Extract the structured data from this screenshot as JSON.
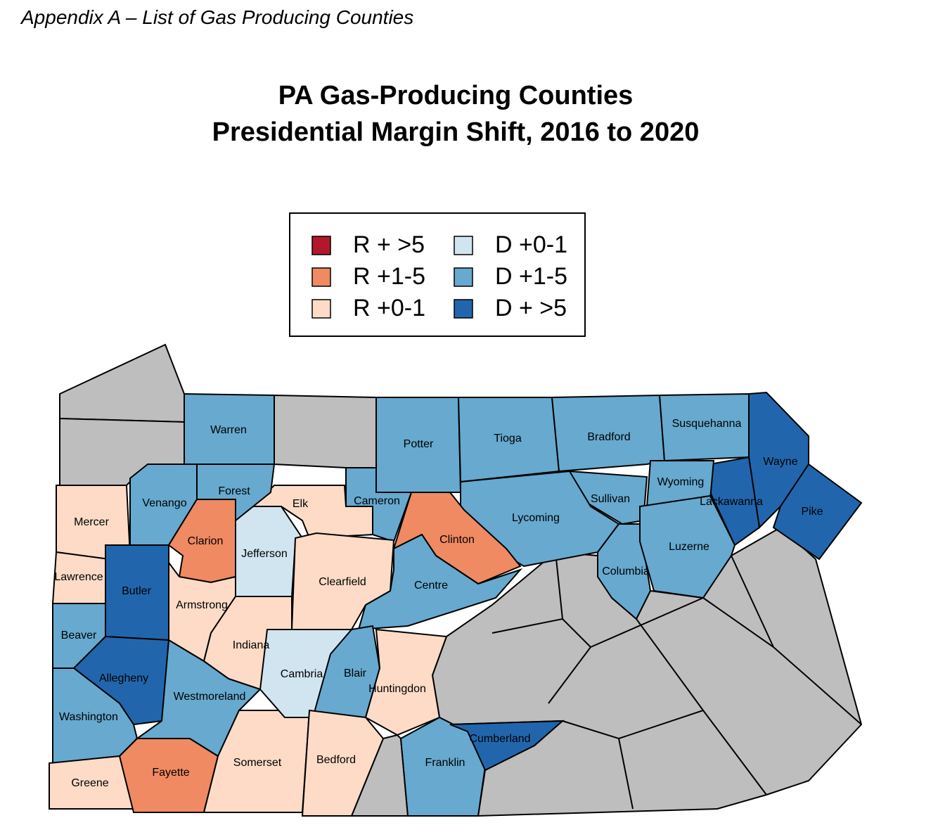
{
  "header": {
    "title": "Appendix A – List of Gas Producing Counties"
  },
  "map": {
    "title": [
      "PA Gas-Producing Counties",
      "Presidential Margin Shift, 2016 to 2020"
    ],
    "legend": [
      {
        "label": "R + >5",
        "color": "#b2182b"
      },
      {
        "label": "R +1-5",
        "color": "#ef8a62"
      },
      {
        "label": "R +0-1",
        "color": "#fddbc7"
      },
      {
        "label": "D +0-1",
        "color": "#d1e5f0"
      },
      {
        "label": "D +1-5",
        "color": "#67a9cf"
      },
      {
        "label": "D + >5",
        "color": "#2166ac"
      }
    ],
    "other_color": "#bebebe",
    "counties": [
      {
        "name": "Warren",
        "shift": "D +1-5"
      },
      {
        "name": "Potter",
        "shift": "D +1-5"
      },
      {
        "name": "Tioga",
        "shift": "D +1-5"
      },
      {
        "name": "Bradford",
        "shift": "D +1-5"
      },
      {
        "name": "Susquehanna",
        "shift": "D +1-5"
      },
      {
        "name": "Wayne",
        "shift": "D + >5"
      },
      {
        "name": "Pike",
        "shift": "D + >5"
      },
      {
        "name": "Lackawanna",
        "shift": "D + >5"
      },
      {
        "name": "Wyoming",
        "shift": "D +1-5"
      },
      {
        "name": "Sullivan",
        "shift": "D +1-5"
      },
      {
        "name": "Lycoming",
        "shift": "D +1-5"
      },
      {
        "name": "Clinton",
        "shift": "R +1-5"
      },
      {
        "name": "Cameron",
        "shift": "D +1-5"
      },
      {
        "name": "Centre",
        "shift": "D +1-5"
      },
      {
        "name": "Columbia",
        "shift": "D +1-5"
      },
      {
        "name": "Luzerne",
        "shift": "D +1-5"
      },
      {
        "name": "Elk",
        "shift": "R +0-1"
      },
      {
        "name": "Jefferson",
        "shift": "D +0-1"
      },
      {
        "name": "Clearfield",
        "shift": "R +0-1"
      },
      {
        "name": "Forest",
        "shift": "D +1-5"
      },
      {
        "name": "Venango",
        "shift": "D +1-5"
      },
      {
        "name": "Clarion",
        "shift": "R +1-5"
      },
      {
        "name": "Mercer",
        "shift": "R +0-1"
      },
      {
        "name": "Lawrence",
        "shift": "R +0-1"
      },
      {
        "name": "Butler",
        "shift": "D + >5"
      },
      {
        "name": "Armstrong",
        "shift": "R +0-1"
      },
      {
        "name": "Indiana",
        "shift": "R +0-1"
      },
      {
        "name": "Beaver",
        "shift": "D +1-5"
      },
      {
        "name": "Allegheny",
        "shift": "D + >5"
      },
      {
        "name": "Washington",
        "shift": "D +1-5"
      },
      {
        "name": "Greene",
        "shift": "R +0-1"
      },
      {
        "name": "Fayette",
        "shift": "R +1-5"
      },
      {
        "name": "Westmoreland",
        "shift": "D +1-5"
      },
      {
        "name": "Somerset",
        "shift": "R +0-1"
      },
      {
        "name": "Cambria",
        "shift": "D +0-1"
      },
      {
        "name": "Blair",
        "shift": "D +1-5"
      },
      {
        "name": "Bedford",
        "shift": "R +0-1"
      },
      {
        "name": "Huntingdon",
        "shift": "R +0-1"
      },
      {
        "name": "Franklin",
        "shift": "D +1-5"
      },
      {
        "name": "Cumberland",
        "shift": "D + >5"
      }
    ]
  }
}
